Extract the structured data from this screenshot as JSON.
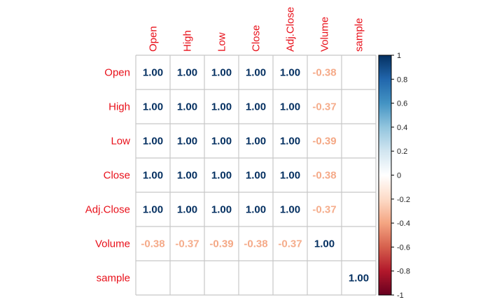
{
  "chart_data": {
    "type": "heatmap",
    "title": "",
    "variables": [
      "Open",
      "High",
      "Low",
      "Close",
      "Adj.Close",
      "Volume",
      "sample"
    ],
    "matrix": [
      [
        1.0,
        1.0,
        1.0,
        1.0,
        1.0,
        -0.38,
        null
      ],
      [
        1.0,
        1.0,
        1.0,
        1.0,
        1.0,
        -0.37,
        null
      ],
      [
        1.0,
        1.0,
        1.0,
        1.0,
        1.0,
        -0.39,
        null
      ],
      [
        1.0,
        1.0,
        1.0,
        1.0,
        1.0,
        -0.38,
        null
      ],
      [
        1.0,
        1.0,
        1.0,
        1.0,
        1.0,
        -0.37,
        null
      ],
      [
        -0.38,
        -0.37,
        -0.39,
        -0.38,
        -0.37,
        1.0,
        null
      ],
      [
        null,
        null,
        null,
        null,
        null,
        null,
        1.0
      ]
    ],
    "value_format": "0.00",
    "color_scale": {
      "min": -1,
      "max": 1,
      "ticks": [
        "1",
        "0.8",
        "0.6",
        "0.4",
        "0.2",
        "0",
        "-0.2",
        "-0.4",
        "-0.6",
        "-0.8",
        "-1"
      ],
      "colors": [
        "#67001f",
        "#b2182b",
        "#d6604d",
        "#f4a582",
        "#fddbc7",
        "#ffffff",
        "#d1e5f0",
        "#92c5de",
        "#4393c3",
        "#2166ac",
        "#053061"
      ]
    },
    "label_color": "#e8101a",
    "grid": true,
    "legend_position": "right"
  }
}
